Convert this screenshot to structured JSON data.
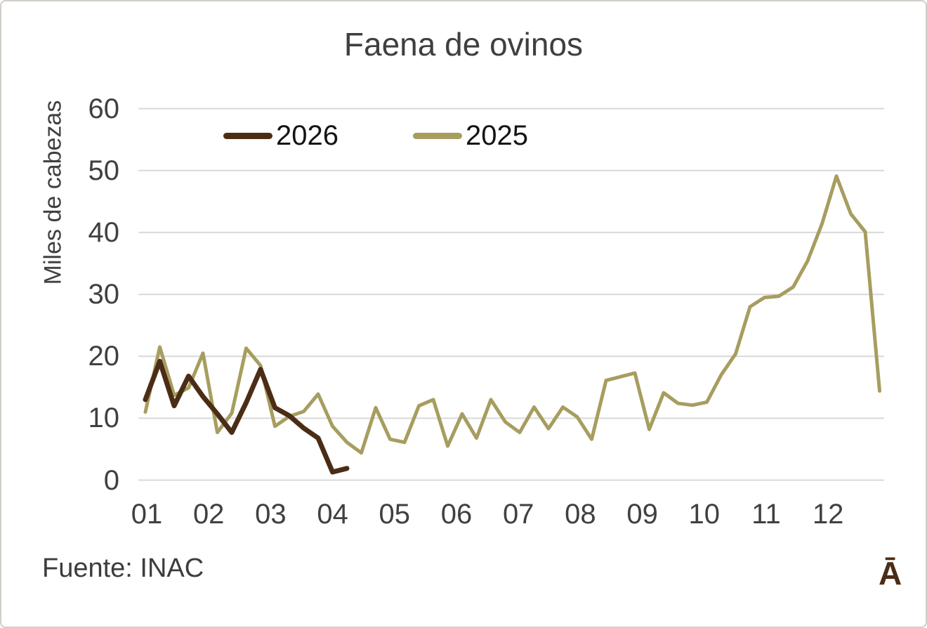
{
  "window": {
    "background": "#ffffff",
    "border_color": "#d2cec7"
  },
  "source": "Fuente: INAC",
  "logo_text": "Ā",
  "colors": {
    "grid": "#d9d9d9",
    "axis_text": "#404040",
    "title_text": "#3f3f3f",
    "series_2026": "#4b2d16",
    "series_2025": "#a79d5f"
  },
  "chart_data": {
    "type": "line",
    "title": "Faena de ovinos",
    "xlabel": "",
    "ylabel": "Miles de cabezas",
    "ylim": [
      0,
      60
    ],
    "y_ticks": [
      0,
      10,
      20,
      30,
      40,
      50,
      60
    ],
    "x_tick_labels": [
      "01",
      "02",
      "03",
      "04",
      "05",
      "06",
      "07",
      "08",
      "09",
      "10",
      "11",
      "12"
    ],
    "x_unit": "weeks (weekly data, months 01-12 on axis)",
    "grid": "horizontal",
    "legend_position": "top-left-inside",
    "series": [
      {
        "name": "2026",
        "color": "#4b2d16",
        "stroke_width": 7,
        "values": [
          13.0,
          19.2,
          12.0,
          16.8,
          13.5,
          10.7,
          7.7,
          12.5,
          17.9,
          11.7,
          10.4,
          8.4,
          6.8,
          1.3,
          1.9
        ]
      },
      {
        "name": "2025",
        "color": "#a79d5f",
        "stroke_width": 5,
        "values": [
          11.0,
          21.5,
          13.7,
          14.9,
          20.5,
          7.7,
          10.8,
          21.3,
          18.5,
          8.7,
          10.3,
          11.1,
          13.9,
          8.7,
          6.1,
          4.4,
          11.7,
          6.6,
          6.1,
          12.0,
          13.0,
          5.5,
          10.7,
          6.8,
          13.0,
          9.4,
          7.7,
          11.8,
          8.3,
          11.8,
          10.2,
          6.6,
          16.1,
          16.7,
          17.3,
          8.2,
          14.1,
          12.4,
          12.1,
          12.6,
          17.0,
          20.4,
          28.0,
          29.5,
          29.7,
          31.2,
          35.4,
          41.4,
          49.1,
          43.0,
          40.1,
          14.4
        ]
      }
    ]
  }
}
